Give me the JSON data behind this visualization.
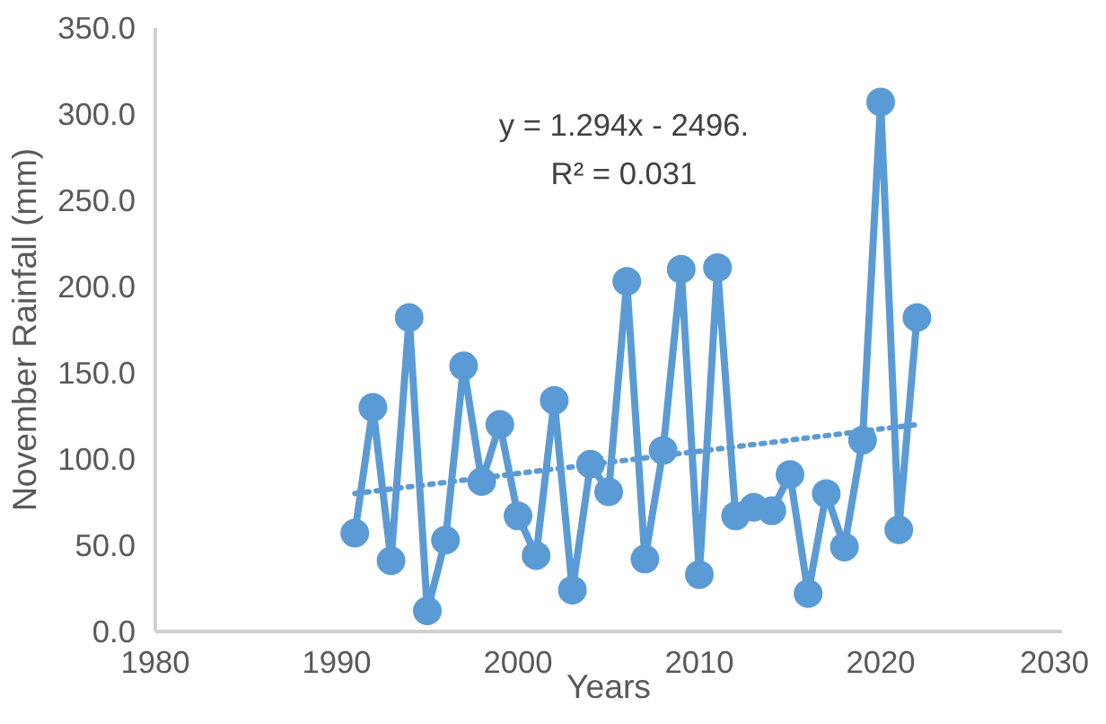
{
  "chart_data": {
    "type": "line",
    "xlabel": "Years",
    "ylabel": "November Rainfall (mm)",
    "x": [
      1991,
      1992,
      1993,
      1994,
      1995,
      1996,
      1997,
      1998,
      1999,
      2000,
      2001,
      2002,
      2003,
      2004,
      2005,
      2006,
      2007,
      2008,
      2009,
      2010,
      2011,
      2012,
      2013,
      2014,
      2015,
      2016,
      2017,
      2018,
      2019,
      2020,
      2021,
      2022
    ],
    "series": [
      {
        "color": "#5b9bd5",
        "marker": "circle",
        "line_style": "solid",
        "values": [
          57,
          130,
          41,
          182,
          12,
          53,
          154,
          87,
          120,
          67,
          44,
          134,
          24,
          97,
          81,
          203,
          42,
          105,
          210,
          33,
          211,
          67,
          72,
          70,
          91,
          22,
          80,
          49,
          111,
          307,
          59,
          182
        ]
      },
      {
        "type": "line",
        "color": "#5b9bd5",
        "marker": "none",
        "line_style": "dotted",
        "x": [
          1991,
          2022
        ],
        "values": [
          80,
          120
        ]
      }
    ],
    "annotations": [
      "y = 1.294x - 2496.",
      "R² = 0.031"
    ],
    "xlim": [
      1980,
      2030
    ],
    "xticks": [
      1980,
      1990,
      2000,
      2010,
      2020,
      2030
    ],
    "ylim": [
      0,
      350
    ],
    "yticks": [
      {
        "value": 0,
        "label": "0.0"
      },
      {
        "value": 50,
        "label": "50.0"
      },
      {
        "value": 100,
        "label": "100.0"
      },
      {
        "value": 150,
        "label": "150.0"
      },
      {
        "value": 200,
        "label": "200.0"
      },
      {
        "value": 250,
        "label": "250.0"
      },
      {
        "value": 300,
        "label": "300.0"
      },
      {
        "value": 350,
        "label": "350.0"
      }
    ],
    "grid": false
  }
}
